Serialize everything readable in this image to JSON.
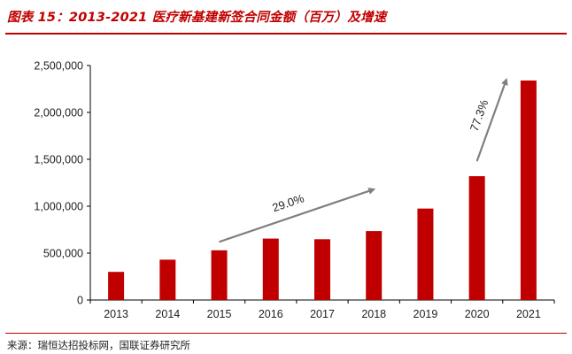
{
  "header": {
    "title": "图表 15：2013-2021 医疗新基建新签合同金额（百万）及增速"
  },
  "footer": {
    "source": "来源：瑞恒达招投标网，国联证券研究所"
  },
  "colors": {
    "bar": "#c00000",
    "arrow": "#808080",
    "rule": "#c00000"
  },
  "chart_data": {
    "type": "bar",
    "categories": [
      "2013",
      "2014",
      "2015",
      "2016",
      "2017",
      "2018",
      "2019",
      "2020",
      "2021"
    ],
    "values": [
      300000,
      430000,
      530000,
      655000,
      648000,
      735000,
      975000,
      1320000,
      2340000
    ],
    "ylim": [
      0,
      2500000
    ],
    "yticks": [
      0,
      500000,
      1000000,
      1500000,
      2000000,
      2500000
    ],
    "ytick_labels": [
      "0",
      "500,000",
      "1,000,000",
      "1,500,000",
      "2,000,000",
      "2,500,000"
    ],
    "grid": false,
    "annotations": [
      {
        "text": "29.0%",
        "from": "2015",
        "to": "2018",
        "y_from": 620000,
        "y_to": 1180000
      },
      {
        "text": "77.3%",
        "from": "2020",
        "to": "2021",
        "y_from": 1480000,
        "y_to": 2350000
      }
    ]
  }
}
